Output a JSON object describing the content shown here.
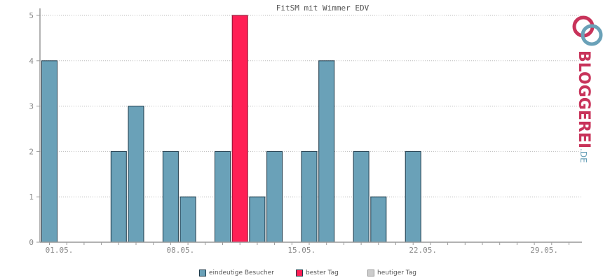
{
  "chart_data": {
    "type": "bar",
    "title": "FitSM mit Wimmer EDV",
    "x_tick_labels": [
      "01.05.",
      "08.05.",
      "15.05.",
      "22.05.",
      "29.05."
    ],
    "y_tick_labels": [
      "0",
      "1",
      "2",
      "3",
      "4",
      "5"
    ],
    "ylim": [
      0,
      5
    ],
    "grid": true,
    "days": [
      1,
      2,
      3,
      4,
      5,
      6,
      7,
      8,
      9,
      10,
      11,
      12,
      13,
      14,
      15,
      16,
      17,
      18,
      19,
      20,
      21,
      22,
      23,
      24,
      25,
      26,
      27,
      28,
      29,
      30,
      31
    ],
    "values": [
      4,
      0,
      0,
      0,
      2,
      3,
      0,
      2,
      1,
      0,
      2,
      5,
      1,
      2,
      0,
      2,
      4,
      0,
      2,
      1,
      0,
      2,
      0,
      0,
      0,
      0,
      0,
      0,
      0,
      0,
      0
    ],
    "best_day": 12,
    "series": [
      {
        "name": "eindeutige Besucher",
        "color": "#6aa1b8"
      },
      {
        "name": "bester Tag",
        "color": "#ff1f55"
      },
      {
        "name": "heutiger Tag",
        "color": "#cccccc"
      }
    ],
    "legend_position": "bottom"
  },
  "logo": {
    "text": "BLOGGEREI",
    "suffix": ".DE",
    "colors": {
      "primary": "#c8335a",
      "secondary": "#6aa1b8"
    }
  }
}
